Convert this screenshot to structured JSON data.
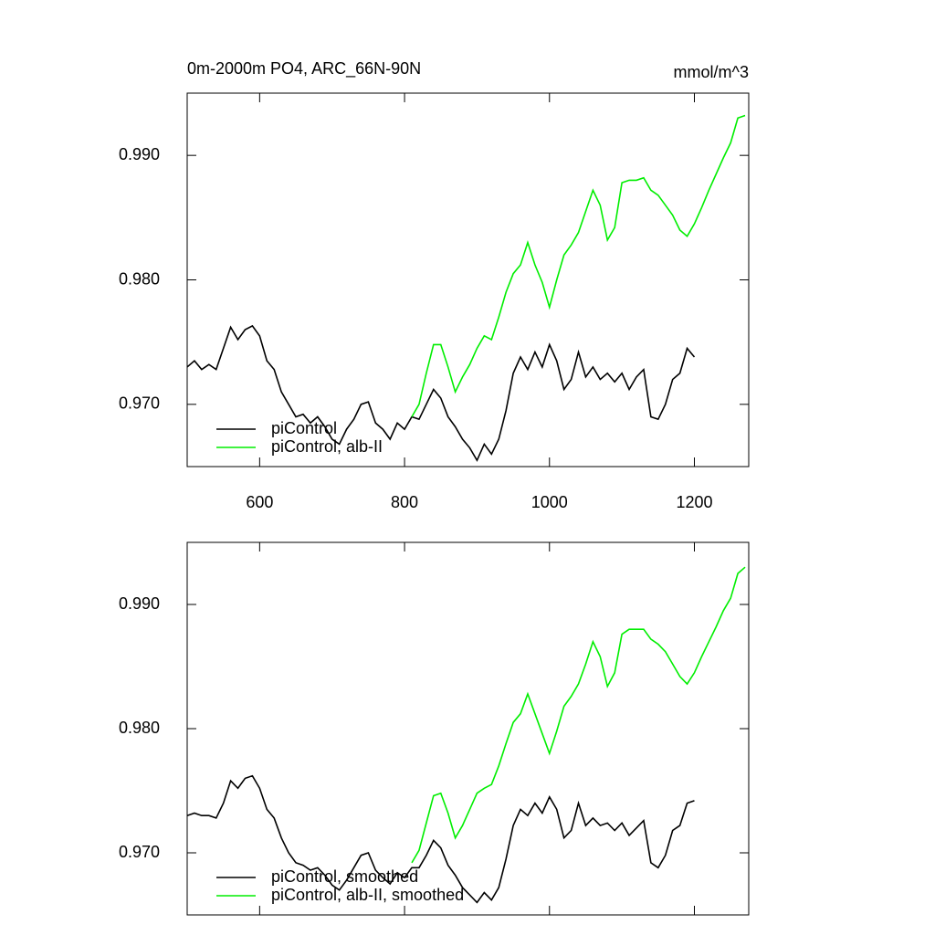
{
  "chart_data": [
    {
      "type": "line",
      "title": "0m-2000m PO4, ARC_66N-90N",
      "units": "mmol/m^3",
      "xlim": [
        500,
        1275
      ],
      "ylim": [
        0.965,
        0.995
      ],
      "xticks": [
        600,
        800,
        1000,
        1200
      ],
      "xtick_labels": true,
      "yticks": [
        {
          "value": 0.97,
          "label": "0.970"
        },
        {
          "value": 0.98,
          "label": "0.980"
        },
        {
          "value": 0.99,
          "label": "0.990"
        }
      ],
      "legend": "lower left",
      "series": [
        {
          "name": "piControl",
          "color": "#000000",
          "x": [
            500,
            510,
            520,
            530,
            540,
            550,
            560,
            570,
            580,
            590,
            600,
            610,
            620,
            630,
            640,
            650,
            660,
            670,
            680,
            690,
            700,
            710,
            720,
            730,
            740,
            750,
            760,
            770,
            780,
            790,
            800,
            810,
            820,
            830,
            840,
            850,
            860,
            870,
            880,
            890,
            900,
            910,
            920,
            930,
            940,
            950,
            960,
            970,
            980,
            990,
            1000,
            1010,
            1020,
            1030,
            1040,
            1050,
            1060,
            1070,
            1080,
            1090,
            1100,
            1110,
            1120,
            1130,
            1140,
            1150,
            1160,
            1170,
            1180,
            1190,
            1200
          ],
          "values": [
            0.973,
            0.9735,
            0.9728,
            0.9732,
            0.9728,
            0.9745,
            0.9762,
            0.9752,
            0.976,
            0.9763,
            0.9755,
            0.9735,
            0.9728,
            0.971,
            0.97,
            0.969,
            0.9692,
            0.9685,
            0.969,
            0.9682,
            0.9672,
            0.9668,
            0.968,
            0.9688,
            0.97,
            0.9702,
            0.9685,
            0.968,
            0.9672,
            0.9685,
            0.968,
            0.969,
            0.9688,
            0.97,
            0.9712,
            0.9705,
            0.969,
            0.9682,
            0.9672,
            0.9665,
            0.9655,
            0.9668,
            0.966,
            0.9672,
            0.9695,
            0.9725,
            0.9738,
            0.9728,
            0.9742,
            0.973,
            0.9748,
            0.9735,
            0.9712,
            0.972,
            0.9742,
            0.9722,
            0.973,
            0.972,
            0.9725,
            0.9718,
            0.9725,
            0.9712,
            0.9722,
            0.9728,
            0.969,
            0.9688,
            0.97,
            0.972,
            0.9725,
            0.9745,
            0.9738
          ]
        },
        {
          "name": "piControl, alb-II",
          "color": "#00ee00",
          "x": [
            810,
            820,
            830,
            840,
            850,
            860,
            870,
            880,
            890,
            900,
            910,
            920,
            930,
            940,
            950,
            960,
            970,
            980,
            990,
            1000,
            1010,
            1020,
            1030,
            1040,
            1050,
            1060,
            1070,
            1080,
            1090,
            1100,
            1110,
            1120,
            1130,
            1140,
            1150,
            1160,
            1170,
            1180,
            1190,
            1200,
            1210,
            1220,
            1230,
            1240,
            1250,
            1260,
            1270
          ],
          "values": [
            0.969,
            0.97,
            0.9725,
            0.9748,
            0.9748,
            0.973,
            0.971,
            0.9722,
            0.9732,
            0.9745,
            0.9755,
            0.9752,
            0.977,
            0.979,
            0.9805,
            0.9812,
            0.983,
            0.9812,
            0.9798,
            0.9778,
            0.98,
            0.982,
            0.9828,
            0.9838,
            0.9855,
            0.9872,
            0.986,
            0.9832,
            0.9842,
            0.9878,
            0.988,
            0.988,
            0.9882,
            0.9872,
            0.9868,
            0.986,
            0.9852,
            0.984,
            0.9835,
            0.9845,
            0.9858,
            0.9872,
            0.9885,
            0.9898,
            0.991,
            0.993,
            0.9932
          ]
        }
      ]
    },
    {
      "type": "line",
      "xlim": [
        500,
        1275
      ],
      "ylim": [
        0.965,
        0.995
      ],
      "xticks": [
        600,
        800,
        1000,
        1200
      ],
      "xtick_labels": false,
      "yticks": [
        {
          "value": 0.97,
          "label": "0.970"
        },
        {
          "value": 0.98,
          "label": "0.980"
        },
        {
          "value": 0.99,
          "label": "0.990"
        }
      ],
      "legend": "lower left",
      "series": [
        {
          "name": "piControl, smoothed",
          "color": "#000000",
          "x": [
            500,
            510,
            520,
            530,
            540,
            550,
            560,
            570,
            580,
            590,
            600,
            610,
            620,
            630,
            640,
            650,
            660,
            670,
            680,
            690,
            700,
            710,
            720,
            730,
            740,
            750,
            760,
            770,
            780,
            790,
            800,
            810,
            820,
            830,
            840,
            850,
            860,
            870,
            880,
            890,
            900,
            910,
            920,
            930,
            940,
            950,
            960,
            970,
            980,
            990,
            1000,
            1010,
            1020,
            1030,
            1040,
            1050,
            1060,
            1070,
            1080,
            1090,
            1100,
            1110,
            1120,
            1130,
            1140,
            1150,
            1160,
            1170,
            1180,
            1190,
            1200
          ],
          "values": [
            0.973,
            0.9732,
            0.973,
            0.973,
            0.9728,
            0.974,
            0.9758,
            0.9752,
            0.976,
            0.9762,
            0.9752,
            0.9735,
            0.9728,
            0.9712,
            0.97,
            0.9692,
            0.969,
            0.9686,
            0.9688,
            0.9682,
            0.9674,
            0.967,
            0.9678,
            0.9688,
            0.9698,
            0.97,
            0.9686,
            0.968,
            0.9675,
            0.9684,
            0.968,
            0.9688,
            0.9688,
            0.9698,
            0.971,
            0.9704,
            0.969,
            0.9682,
            0.9672,
            0.9666,
            0.966,
            0.9668,
            0.9662,
            0.9672,
            0.9695,
            0.9722,
            0.9735,
            0.973,
            0.974,
            0.9732,
            0.9745,
            0.9735,
            0.9712,
            0.9718,
            0.974,
            0.9722,
            0.9728,
            0.9722,
            0.9724,
            0.9718,
            0.9724,
            0.9714,
            0.972,
            0.9726,
            0.9692,
            0.9688,
            0.9698,
            0.9718,
            0.9722,
            0.974,
            0.9742
          ]
        },
        {
          "name": "piControl, alb-II, smoothed",
          "color": "#00ee00",
          "x": [
            810,
            820,
            830,
            840,
            850,
            860,
            870,
            880,
            890,
            900,
            910,
            920,
            930,
            940,
            950,
            960,
            970,
            980,
            990,
            1000,
            1010,
            1020,
            1030,
            1040,
            1050,
            1060,
            1070,
            1080,
            1090,
            1100,
            1110,
            1120,
            1130,
            1140,
            1150,
            1160,
            1170,
            1180,
            1190,
            1200,
            1210,
            1220,
            1230,
            1240,
            1250,
            1260,
            1270
          ],
          "values": [
            0.9692,
            0.9702,
            0.9724,
            0.9746,
            0.9748,
            0.9732,
            0.9712,
            0.9722,
            0.9735,
            0.9748,
            0.9752,
            0.9755,
            0.977,
            0.9788,
            0.9805,
            0.9812,
            0.9828,
            0.9812,
            0.9796,
            0.978,
            0.9798,
            0.9818,
            0.9826,
            0.9836,
            0.9852,
            0.987,
            0.9858,
            0.9834,
            0.9845,
            0.9876,
            0.988,
            0.988,
            0.988,
            0.9872,
            0.9868,
            0.9862,
            0.9852,
            0.9842,
            0.9836,
            0.9845,
            0.9858,
            0.987,
            0.9882,
            0.9895,
            0.9905,
            0.9925,
            0.993
          ]
        }
      ]
    }
  ]
}
